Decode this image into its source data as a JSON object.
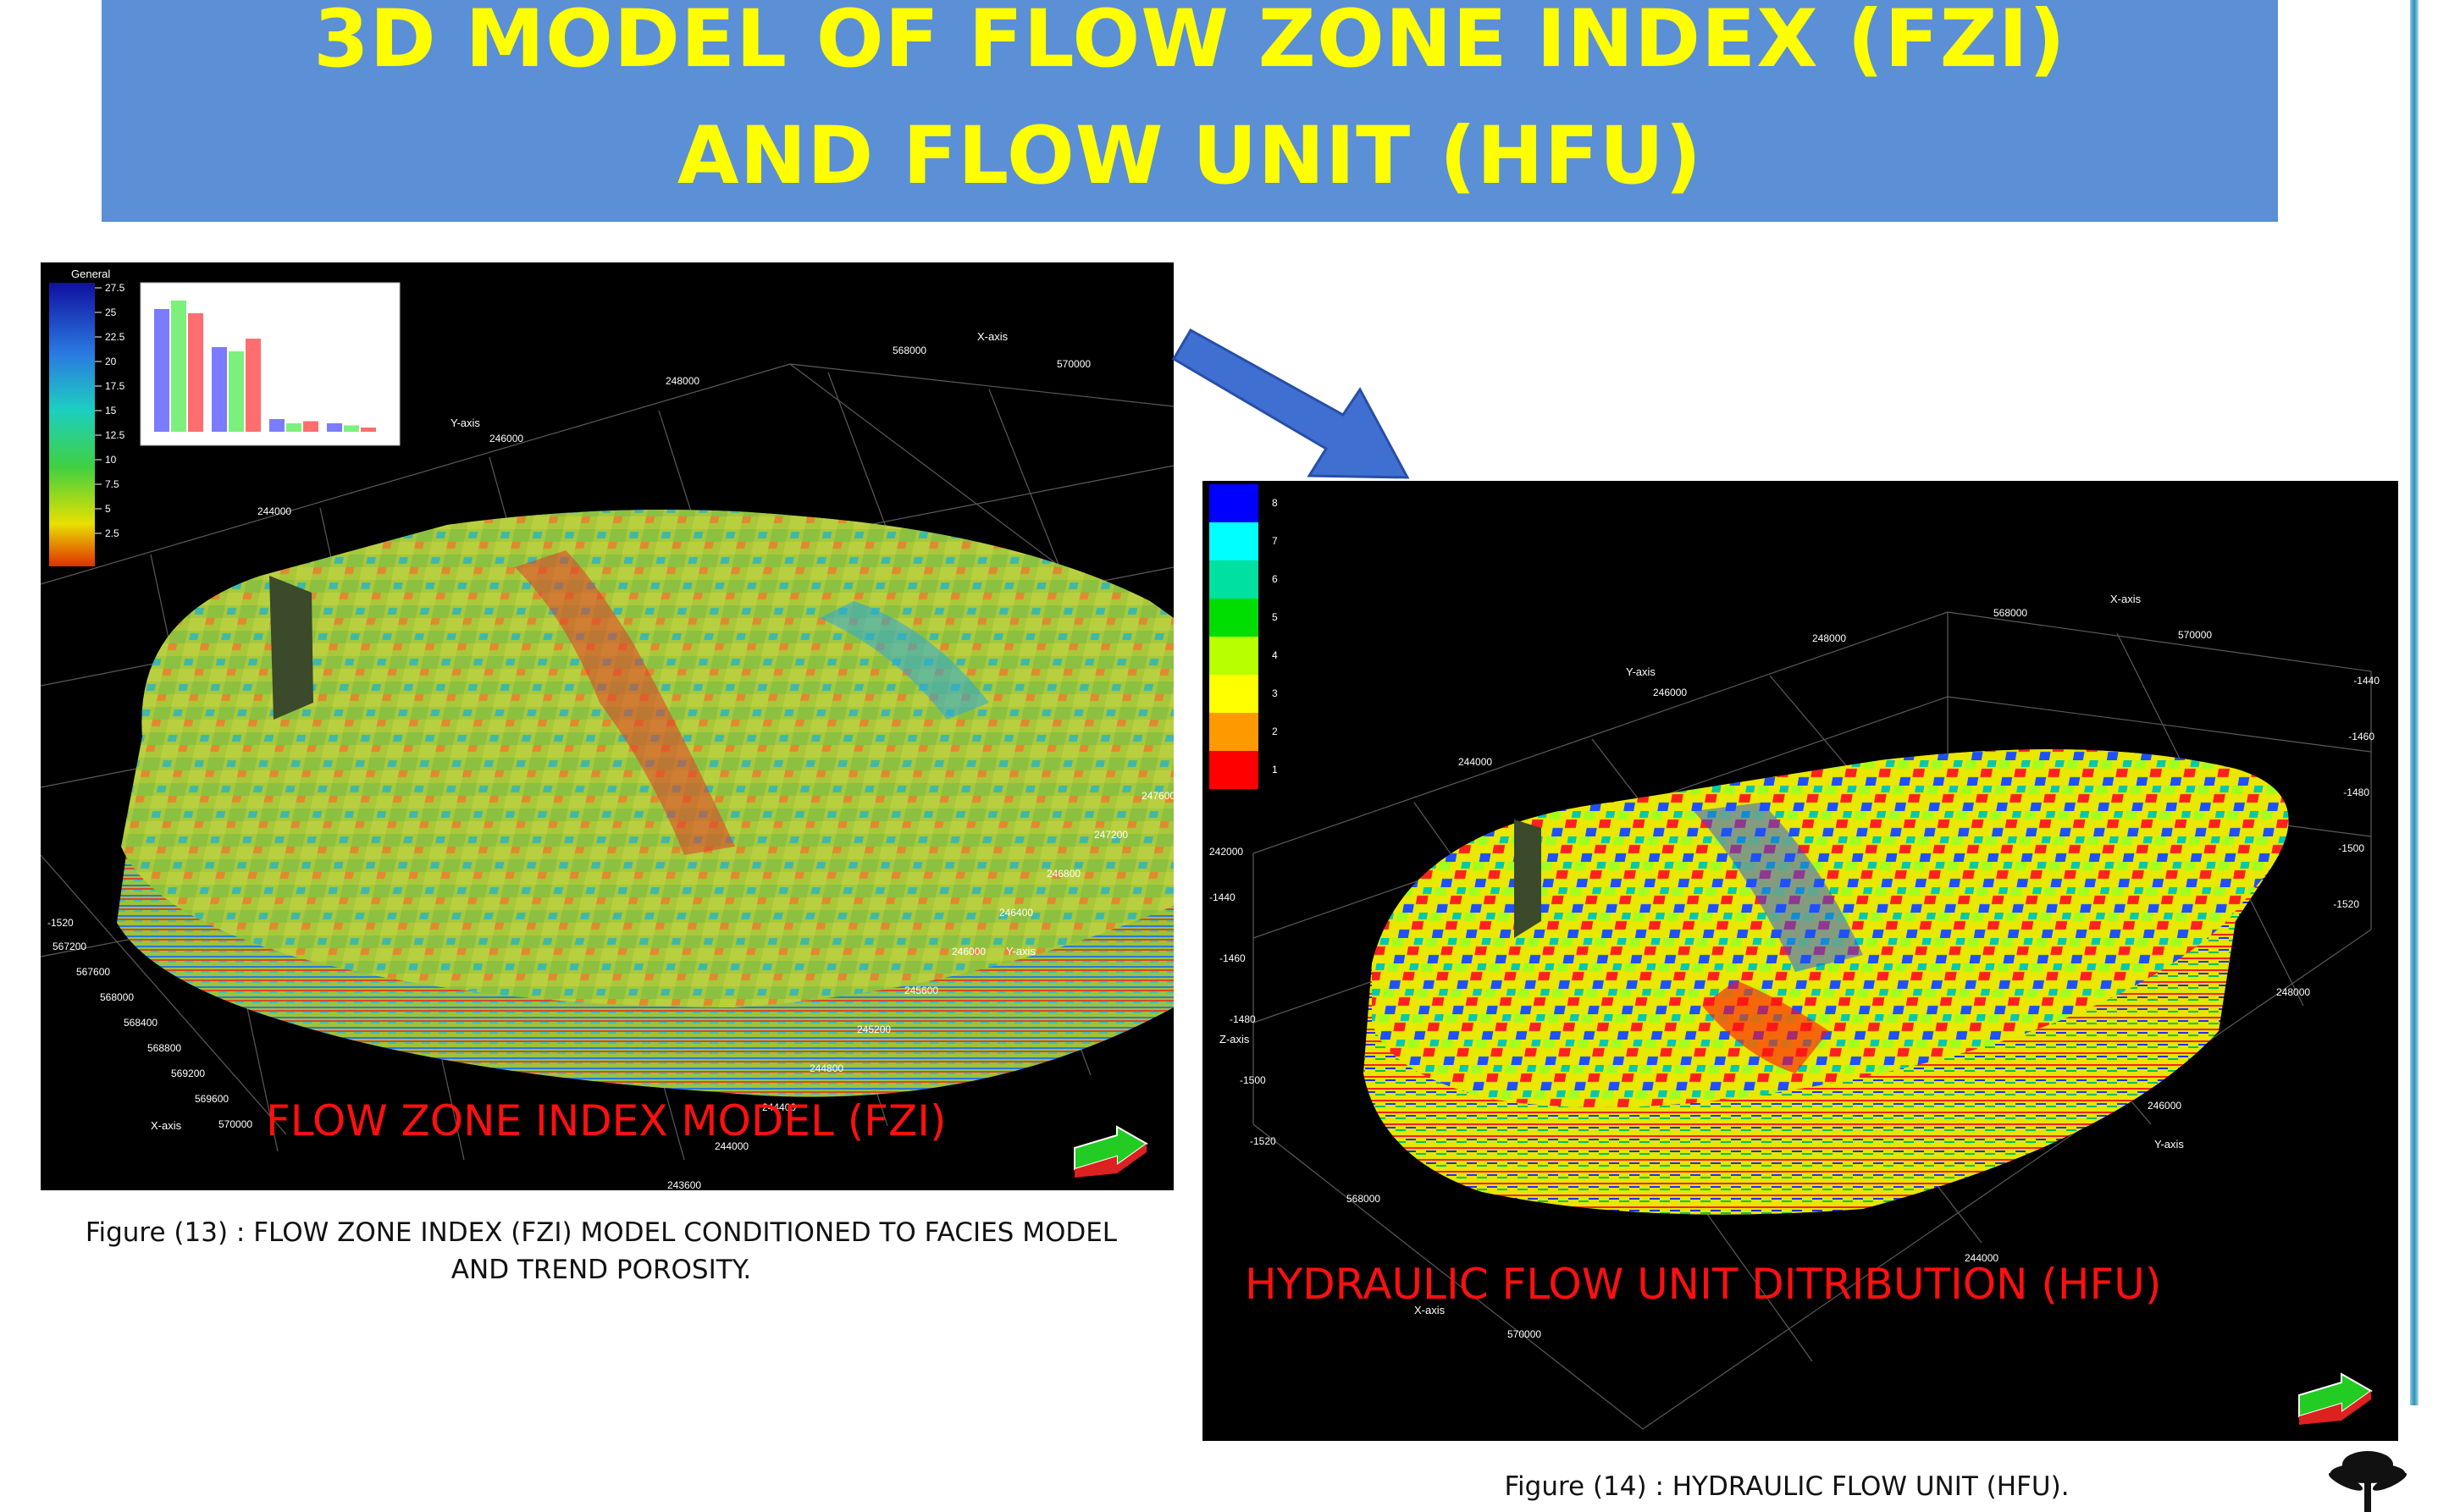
{
  "title": {
    "line1": "3D MODEL OF FLOW ZONE INDEX (FZI)",
    "line2": "AND  FLOW  UNIT  (HFU)"
  },
  "fzi_panel": {
    "overlay_label": "FLOW  ZONE  INDEX  MODEL (FZI)",
    "legend_title": "General",
    "legend_ticks": [
      "27.5",
      "25",
      "22.5",
      "20",
      "17.5",
      "15",
      "12.5",
      "10",
      "7.5",
      "5",
      "2.5"
    ],
    "x_axis_label": "X-axis",
    "y_axis_label": "Y-axis",
    "x_ticks": [
      "567200",
      "567600",
      "568000",
      "568400",
      "568800",
      "569200",
      "569600",
      "570000"
    ],
    "y_ticks": [
      "247600",
      "247200",
      "246800",
      "246400",
      "246000",
      "245600",
      "245200",
      "244800",
      "244400",
      "244000",
      "243600"
    ],
    "z_tick": "-1520",
    "top_x_ticks": [
      "568000",
      "570000"
    ],
    "top_y_ticks": [
      "248000",
      "246000",
      "244000"
    ],
    "top_x_label": "X-axis",
    "top_y_label": "Y-axis",
    "inset_histogram": {
      "series": [
        {
          "color": "#7b7bff",
          "values": [
            29,
            20,
            3,
            2
          ]
        },
        {
          "color": "#7cf07c",
          "values": [
            31,
            19,
            2,
            1.5
          ]
        },
        {
          "color": "#ff6e6e",
          "values": [
            28,
            22,
            2.5,
            1
          ]
        }
      ]
    }
  },
  "hfu_panel": {
    "overlay_label": "HYDRAULIC  FLOW  UNIT  DITRIBUTION (HFU)",
    "legend_ticks": [
      "8",
      "7",
      "6",
      "5",
      "4",
      "3",
      "2",
      "1"
    ],
    "legend_colors": [
      "#0000ff",
      "#00ffff",
      "#00e0a0",
      "#00dd00",
      "#b8ff00",
      "#ffff00",
      "#ff9900",
      "#ff0000"
    ],
    "x_axis_label": "X-axis",
    "y_axis_label": "Y-axis",
    "z_axis_label": "Z-axis",
    "z_ticks_left": [
      "-1440",
      "-1460",
      "-1480",
      "-1500",
      "-1520"
    ],
    "z_ticks_right": [
      "-1440",
      "-1460",
      "-1480",
      "-1500",
      "-1520"
    ],
    "left_y_tick": "242000",
    "x_ticks": [
      "568000",
      "570000"
    ],
    "y_ticks": [
      "248000",
      "246000",
      "244000"
    ],
    "top_x_ticks": [
      "568000",
      "570000"
    ],
    "top_y_ticks": [
      "248000",
      "246000",
      "244000"
    ],
    "top_x_label": "X-axis",
    "top_y_label": "Y-axis"
  },
  "captions": {
    "fig13_line1": "Figure (13) :  FLOW ZONE INDEX (FZI) MODEL CONDITIONED  TO FACIES MODEL",
    "fig13_line2": "AND TREND POROSITY.",
    "fig14": "Figure (14)  : HYDRAULIC FLOW  UNIT (HFU)."
  }
}
